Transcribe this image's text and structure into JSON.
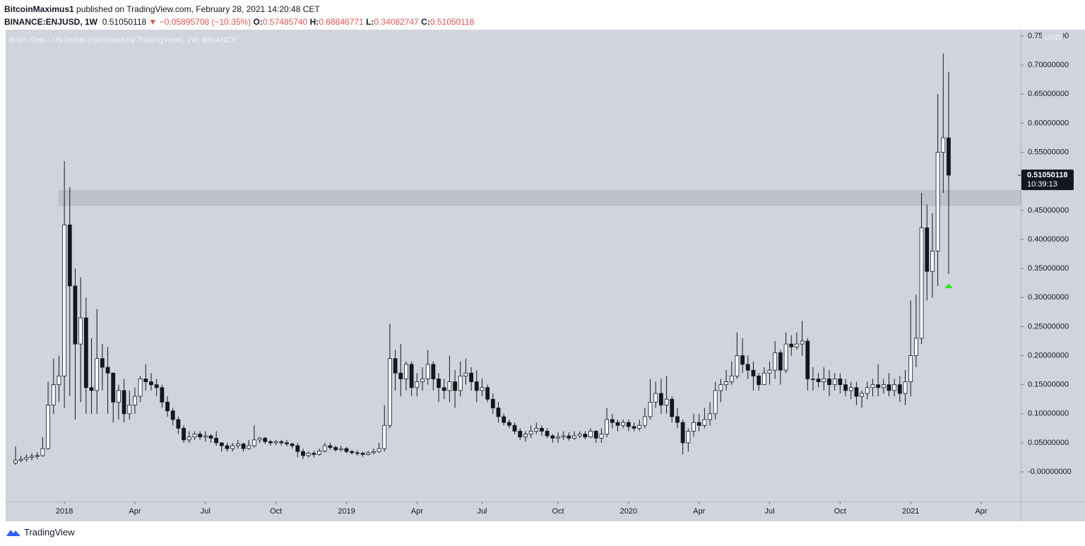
{
  "header": {
    "author": "BitcoinMaximus1",
    "published": "published on TradingView.com, February 28, 2021 14:20:48 CET",
    "symbol": "BINANCE:ENJUSD, 1W",
    "last": "0.51050118",
    "change": "▼ −0.05895708 (−10.35%)",
    "ohlc": [
      [
        "O:",
        "0.57485740"
      ],
      [
        "H:",
        "0.68846771"
      ],
      [
        "L:",
        "0.34082747"
      ],
      [
        "C:",
        "0.51050118"
      ]
    ]
  },
  "footer": {
    "brand": "TradingView"
  },
  "chart_data": {
    "type": "candlestick",
    "title": "Enjin Coin / US Dollar (calculated by TradingView), 1W, BINANCE",
    "y_unit": "USD",
    "ylim": [
      -0.051,
      0.761
    ],
    "yticks": [
      {
        "value": 0,
        "label": "-0.00000000"
      },
      {
        "value": 0.05,
        "label": "0.05000000"
      },
      {
        "value": 0.1,
        "label": "0.10000000"
      },
      {
        "value": 0.15,
        "label": "0.15000000"
      },
      {
        "value": 0.2,
        "label": "0.20000000"
      },
      {
        "value": 0.25,
        "label": "0.25000000"
      },
      {
        "value": 0.3,
        "label": "0.30000000"
      },
      {
        "value": 0.35,
        "label": "0.35000000"
      },
      {
        "value": 0.4,
        "label": "0.40000000"
      },
      {
        "value": 0.45,
        "label": "0.45000000"
      },
      {
        "value": 0.5,
        "label": "0.50000000"
      },
      {
        "value": 0.55,
        "label": "0.55000000"
      },
      {
        "value": 0.6,
        "label": "0.60000000"
      },
      {
        "value": 0.65,
        "label": "0.65000000"
      },
      {
        "value": 0.7,
        "label": "0.70000000"
      },
      {
        "value": 0.75,
        "label": "0.75000000"
      }
    ],
    "up_color": "#ffffff",
    "down_color": "#131722",
    "wick_color": "#131722",
    "zone": [
      0.459,
      0.484
    ],
    "zone_color": "#b2b5be",
    "marker": {
      "value": 0.32,
      "color": "#1ee81e"
    },
    "last_price": {
      "value": 0.51050118,
      "label": "0.51050118"
    },
    "countdown": "10:39:13",
    "categories": [
      null,
      null,
      null,
      null,
      null,
      null,
      null,
      null,
      null,
      "2018",
      null,
      null,
      null,
      null,
      null,
      null,
      null,
      null,
      null,
      null,
      null,
      null,
      "Apr",
      null,
      null,
      null,
      null,
      null,
      null,
      null,
      null,
      null,
      null,
      null,
      null,
      "Jul",
      null,
      null,
      null,
      null,
      null,
      null,
      null,
      null,
      null,
      null,
      null,
      null,
      "Oct",
      null,
      null,
      null,
      null,
      null,
      null,
      null,
      null,
      null,
      null,
      null,
      null,
      "2019",
      null,
      null,
      null,
      null,
      null,
      null,
      null,
      null,
      null,
      null,
      null,
      null,
      "Apr",
      null,
      null,
      null,
      null,
      null,
      null,
      null,
      null,
      null,
      null,
      null,
      "Jul",
      null,
      null,
      null,
      null,
      null,
      null,
      null,
      null,
      null,
      null,
      null,
      null,
      null,
      "Oct",
      null,
      null,
      null,
      null,
      null,
      null,
      null,
      null,
      null,
      null,
      null,
      null,
      "2020",
      null,
      null,
      null,
      null,
      null,
      null,
      null,
      null,
      null,
      null,
      null,
      null,
      "Apr",
      null,
      null,
      null,
      null,
      null,
      null,
      null,
      null,
      null,
      null,
      null,
      null,
      "Jul",
      null,
      null,
      null,
      null,
      null,
      null,
      null,
      null,
      null,
      null,
      null,
      null,
      "Oct",
      null,
      null,
      null,
      null,
      null,
      null,
      null,
      null,
      null,
      null,
      null,
      null,
      "2021",
      null,
      null,
      null,
      null,
      null,
      null,
      null,
      null,
      null,
      null,
      null,
      null,
      "Apr",
      null,
      null,
      null,
      null,
      null,
      null,
      null
    ],
    "open": [
      0.015,
      0.02,
      0.022,
      0.025,
      0.027,
      0.028,
      0.04,
      0.115,
      0.15,
      0.165,
      0.425,
      0.32,
      0.22,
      0.265,
      0.145,
      0.14,
      0.195,
      0.18,
      0.17,
      0.12,
      0.14,
      0.1,
      0.115,
      0.13,
      0.16,
      0.155,
      0.15,
      0.145,
      0.12,
      0.105,
      0.09,
      0.075,
      0.055,
      0.06,
      0.065,
      0.06,
      0.062,
      0.058,
      0.05,
      0.045,
      0.04,
      0.045,
      0.048,
      0.04,
      0.045,
      0.055,
      0.058,
      0.052,
      0.05,
      0.052,
      0.05,
      0.048,
      0.045,
      0.035,
      0.028,
      0.032,
      0.03,
      0.036,
      0.045,
      0.042,
      0.038,
      0.04,
      0.035,
      0.033,
      0.032,
      0.03,
      0.033,
      0.035,
      0.04,
      0.08,
      0.195,
      0.17,
      0.16,
      0.185,
      0.145,
      0.155,
      0.16,
      0.185,
      0.16,
      0.145,
      0.14,
      0.155,
      0.14,
      0.165,
      0.17,
      0.155,
      0.14,
      0.145,
      0.125,
      0.11,
      0.095,
      0.085,
      0.08,
      0.07,
      0.06,
      0.065,
      0.07,
      0.075,
      0.07,
      0.062,
      0.058,
      0.06,
      0.062,
      0.058,
      0.062,
      0.065,
      0.06,
      0.07,
      0.058,
      0.065,
      0.09,
      0.085,
      0.08,
      0.085,
      0.078,
      0.075,
      0.08,
      0.095,
      0.12,
      0.135,
      0.115,
      0.125,
      0.095,
      0.085,
      0.05,
      0.07,
      0.085,
      0.08,
      0.09,
      0.1,
      0.14,
      0.15,
      0.155,
      0.165,
      0.2,
      0.185,
      0.175,
      0.165,
      0.15,
      0.17,
      0.175,
      0.205,
      0.175,
      0.22,
      0.215,
      0.22,
      0.225,
      0.16,
      0.16,
      0.155,
      0.16,
      0.15,
      0.16,
      0.15,
      0.14,
      0.145,
      0.13,
      0.135,
      0.145,
      0.15,
      0.145,
      0.15,
      0.14,
      0.15,
      0.135,
      0.155,
      0.2,
      0.23,
      0.42,
      0.345,
      0.38,
      0.55,
      0.5748574,
      null,
      null,
      null,
      null,
      null,
      null,
      null,
      null,
      null,
      null,
      null,
      null,
      null
    ],
    "high": [
      0.044,
      0.028,
      0.03,
      0.032,
      0.034,
      0.06,
      0.155,
      0.195,
      0.2,
      0.535,
      0.49,
      0.35,
      0.335,
      0.3,
      0.23,
      0.28,
      0.22,
      0.215,
      0.17,
      0.15,
      0.16,
      0.14,
      0.145,
      0.165,
      0.185,
      0.17,
      0.16,
      0.15,
      0.13,
      0.11,
      0.095,
      0.08,
      0.07,
      0.07,
      0.07,
      0.07,
      0.065,
      0.07,
      0.05,
      0.05,
      0.05,
      0.055,
      0.05,
      0.055,
      0.08,
      0.06,
      0.06,
      0.055,
      0.055,
      0.055,
      0.055,
      0.05,
      0.05,
      0.04,
      0.035,
      0.036,
      0.04,
      0.05,
      0.05,
      0.045,
      0.045,
      0.043,
      0.038,
      0.037,
      0.035,
      0.036,
      0.04,
      0.05,
      0.115,
      0.255,
      0.21,
      0.22,
      0.19,
      0.19,
      0.17,
      0.18,
      0.21,
      0.19,
      0.17,
      0.16,
      0.2,
      0.175,
      0.19,
      0.195,
      0.18,
      0.175,
      0.16,
      0.15,
      0.135,
      0.12,
      0.1,
      0.09,
      0.085,
      0.075,
      0.07,
      0.08,
      0.085,
      0.08,
      0.075,
      0.065,
      0.068,
      0.07,
      0.068,
      0.07,
      0.07,
      0.07,
      0.075,
      0.072,
      0.075,
      0.11,
      0.1,
      0.09,
      0.09,
      0.09,
      0.085,
      0.09,
      0.11,
      0.16,
      0.155,
      0.16,
      0.165,
      0.13,
      0.11,
      0.09,
      0.075,
      0.1,
      0.1,
      0.11,
      0.12,
      0.155,
      0.16,
      0.175,
      0.19,
      0.24,
      0.23,
      0.2,
      0.19,
      0.17,
      0.18,
      0.19,
      0.225,
      0.21,
      0.24,
      0.235,
      0.24,
      0.26,
      0.23,
      0.18,
      0.17,
      0.18,
      0.175,
      0.17,
      0.17,
      0.16,
      0.155,
      0.155,
      0.14,
      0.155,
      0.16,
      0.185,
      0.16,
      0.17,
      0.16,
      0.165,
      0.175,
      0.295,
      0.305,
      0.48,
      0.46,
      0.445,
      0.65,
      0.72,
      0.68846771,
      null,
      null,
      null,
      null,
      null,
      null,
      null,
      null,
      null,
      null,
      null,
      null,
      null
    ],
    "low": [
      0.012,
      0.016,
      0.018,
      0.02,
      0.022,
      0.026,
      0.038,
      0.1,
      0.12,
      0.11,
      0.13,
      0.09,
      0.12,
      0.1,
      0.1,
      0.1,
      0.14,
      0.1,
      0.085,
      0.09,
      0.085,
      0.09,
      0.1,
      0.12,
      0.14,
      0.14,
      0.13,
      0.11,
      0.095,
      0.08,
      0.065,
      0.05,
      0.05,
      0.055,
      0.055,
      0.052,
      0.05,
      0.045,
      0.035,
      0.035,
      0.035,
      0.04,
      0.035,
      0.038,
      0.042,
      0.05,
      0.048,
      0.045,
      0.046,
      0.045,
      0.044,
      0.04,
      0.025,
      0.022,
      0.025,
      0.025,
      0.028,
      0.033,
      0.038,
      0.035,
      0.035,
      0.032,
      0.03,
      0.028,
      0.026,
      0.028,
      0.03,
      0.033,
      0.035,
      0.075,
      0.14,
      0.13,
      0.14,
      0.13,
      0.13,
      0.14,
      0.15,
      0.14,
      0.12,
      0.125,
      0.12,
      0.11,
      0.13,
      0.15,
      0.14,
      0.12,
      0.13,
      0.12,
      0.1,
      0.085,
      0.08,
      0.075,
      0.065,
      0.055,
      0.052,
      0.058,
      0.065,
      0.062,
      0.058,
      0.05,
      0.05,
      0.055,
      0.054,
      0.055,
      0.058,
      0.056,
      0.058,
      0.05,
      0.05,
      0.06,
      0.075,
      0.07,
      0.075,
      0.07,
      0.07,
      0.07,
      0.075,
      0.09,
      0.11,
      0.1,
      0.1,
      0.085,
      0.075,
      0.03,
      0.035,
      0.06,
      0.07,
      0.075,
      0.08,
      0.09,
      0.12,
      0.14,
      0.15,
      0.16,
      0.17,
      0.16,
      0.14,
      0.14,
      0.15,
      0.15,
      0.16,
      0.15,
      0.17,
      0.2,
      0.21,
      0.2,
      0.14,
      0.14,
      0.145,
      0.14,
      0.13,
      0.14,
      0.135,
      0.13,
      0.125,
      0.115,
      0.11,
      0.125,
      0.13,
      0.13,
      0.135,
      0.13,
      0.13,
      0.12,
      0.115,
      0.13,
      0.18,
      0.22,
      0.295,
      0.3,
      0.32,
      0.48,
      0.34082747,
      null,
      null,
      null,
      null,
      null,
      null,
      null,
      null,
      null,
      null,
      null,
      null,
      null
    ],
    "close": [
      0.02,
      0.022,
      0.025,
      0.027,
      0.028,
      0.04,
      0.115,
      0.15,
      0.165,
      0.425,
      0.32,
      0.22,
      0.265,
      0.145,
      0.14,
      0.195,
      0.18,
      0.17,
      0.12,
      0.14,
      0.1,
      0.115,
      0.13,
      0.16,
      0.155,
      0.15,
      0.145,
      0.12,
      0.105,
      0.09,
      0.075,
      0.055,
      0.06,
      0.065,
      0.06,
      0.062,
      0.058,
      0.05,
      0.045,
      0.04,
      0.045,
      0.048,
      0.04,
      0.045,
      0.055,
      0.058,
      0.052,
      0.05,
      0.052,
      0.05,
      0.048,
      0.045,
      0.035,
      0.028,
      0.032,
      0.03,
      0.036,
      0.045,
      0.042,
      0.038,
      0.04,
      0.035,
      0.033,
      0.032,
      0.03,
      0.033,
      0.035,
      0.04,
      0.08,
      0.195,
      0.17,
      0.16,
      0.185,
      0.145,
      0.155,
      0.16,
      0.185,
      0.16,
      0.145,
      0.14,
      0.155,
      0.14,
      0.165,
      0.17,
      0.155,
      0.14,
      0.145,
      0.125,
      0.11,
      0.095,
      0.085,
      0.08,
      0.07,
      0.06,
      0.065,
      0.07,
      0.075,
      0.07,
      0.062,
      0.058,
      0.06,
      0.062,
      0.058,
      0.062,
      0.065,
      0.06,
      0.07,
      0.058,
      0.065,
      0.09,
      0.085,
      0.08,
      0.085,
      0.078,
      0.075,
      0.08,
      0.095,
      0.12,
      0.135,
      0.115,
      0.125,
      0.095,
      0.085,
      0.05,
      0.07,
      0.085,
      0.08,
      0.09,
      0.1,
      0.14,
      0.15,
      0.155,
      0.165,
      0.2,
      0.185,
      0.175,
      0.165,
      0.15,
      0.17,
      0.175,
      0.205,
      0.175,
      0.22,
      0.215,
      0.22,
      0.225,
      0.16,
      0.16,
      0.155,
      0.16,
      0.15,
      0.16,
      0.15,
      0.14,
      0.145,
      0.13,
      0.135,
      0.145,
      0.15,
      0.145,
      0.15,
      0.14,
      0.15,
      0.135,
      0.155,
      0.2,
      0.23,
      0.42,
      0.345,
      0.38,
      0.55,
      0.575,
      0.51050118,
      null,
      null,
      null,
      null,
      null,
      null,
      null,
      null,
      null,
      null,
      null,
      null,
      null
    ]
  }
}
